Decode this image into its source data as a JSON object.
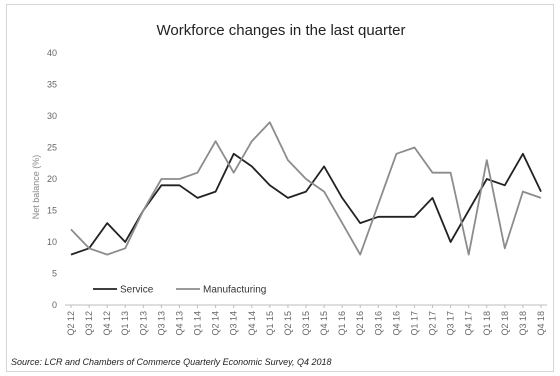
{
  "chart_data": {
    "type": "line",
    "title": "Workforce changes in the last quarter",
    "xlabel": "",
    "ylabel": "Net balance (%)",
    "ylim": [
      0,
      40
    ],
    "yticks": [
      0,
      5,
      10,
      15,
      20,
      25,
      30,
      35,
      40
    ],
    "grid": false,
    "legend_position": "bottom-left",
    "categories": [
      "Q2 12",
      "Q3 12",
      "Q4 12",
      "Q1 13",
      "Q2 13",
      "Q3 13",
      "Q4 13",
      "Q1 14",
      "Q2 14",
      "Q3 14",
      "Q4 14",
      "Q1 15",
      "Q2 15",
      "Q3 15",
      "Q4 15",
      "Q1 16",
      "Q2 16",
      "Q3 16",
      "Q4 16",
      "Q1 17",
      "Q2 17",
      "Q3 17",
      "Q4 17",
      "Q1 18",
      "Q2 18",
      "Q3 18",
      "Q4 18"
    ],
    "series": [
      {
        "name": "Service",
        "color": "#222222",
        "values": [
          8,
          9,
          13,
          10,
          15,
          19,
          19,
          17,
          18,
          24,
          22,
          19,
          17,
          18,
          22,
          17,
          13,
          14,
          14,
          14,
          17,
          10,
          15,
          20,
          19,
          24,
          18
        ]
      },
      {
        "name": "Manufacturing",
        "color": "#8c8c8c",
        "values": [
          12,
          9,
          8,
          9,
          15,
          20,
          20,
          21,
          26,
          21,
          26,
          29,
          23,
          20,
          18,
          13,
          8,
          16,
          24,
          25,
          21,
          21,
          8,
          23,
          9,
          18,
          17
        ]
      }
    ],
    "source": "Source: LCR and Chambers of Commerce Quarterly Economic Survey, Q4 2018"
  }
}
